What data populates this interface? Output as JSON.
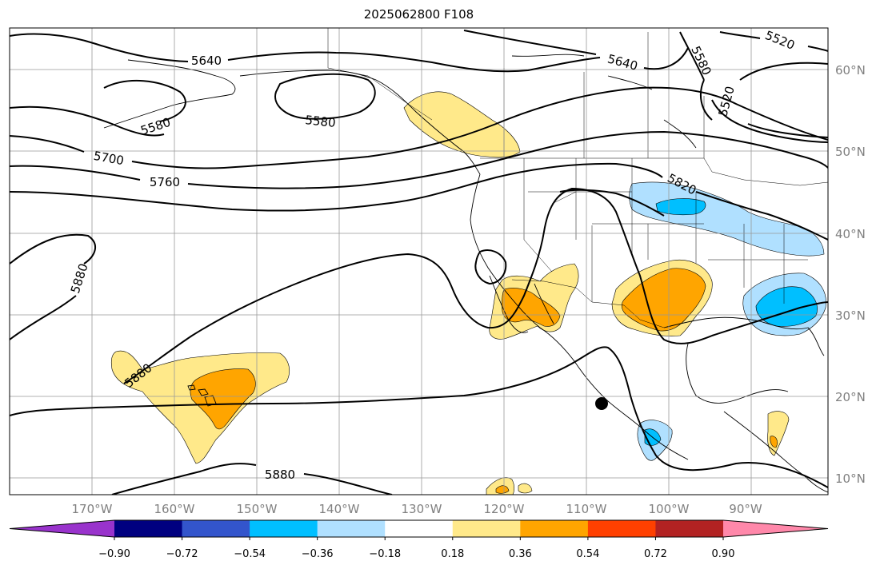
{
  "title": "2025062800 F108",
  "lon_ticks": [
    "170°W",
    "160°W",
    "150°W",
    "140°W",
    "130°W",
    "120°W",
    "110°W",
    "100°W",
    "90°W"
  ],
  "lat_ticks": [
    "60°N",
    "50°N",
    "40°N",
    "30°N",
    "20°N",
    "10°N"
  ],
  "colorbar": {
    "ticks": [
      "−0.90",
      "−0.72",
      "−0.54",
      "−0.36",
      "−0.18",
      "0.18",
      "0.36",
      "0.54",
      "0.72",
      "0.90"
    ],
    "colors": [
      "#9933cc",
      "#000080",
      "#3355cc",
      "#00bfff",
      "#b0e0ff",
      "#ffffff",
      "#ffe98a",
      "#ffa500",
      "#ff4000",
      "#b22222",
      "#ff88aa"
    ]
  },
  "contour_labels": [
    {
      "id": "5640-a",
      "text": "5640"
    },
    {
      "id": "5580-a",
      "text": "5580"
    },
    {
      "id": "5580-b",
      "text": "5580"
    },
    {
      "id": "5700",
      "text": "5700"
    },
    {
      "id": "5760",
      "text": "5760"
    },
    {
      "id": "5880-a",
      "text": "5880"
    },
    {
      "id": "5880-b",
      "text": "5880"
    },
    {
      "id": "5880-c",
      "text": "5880"
    },
    {
      "id": "5640-b",
      "text": "5640"
    },
    {
      "id": "5580-c",
      "text": "5580"
    },
    {
      "id": "5520-a",
      "text": "5520"
    },
    {
      "id": "5520-b",
      "text": "5520"
    },
    {
      "id": "5820",
      "text": "5820"
    }
  ],
  "colors": {
    "light_yellow": "#ffe98a",
    "orange": "#ffa500",
    "light_blue": "#b0e0ff",
    "deep_sky_blue": "#00bfff",
    "grid": "#999999"
  }
}
